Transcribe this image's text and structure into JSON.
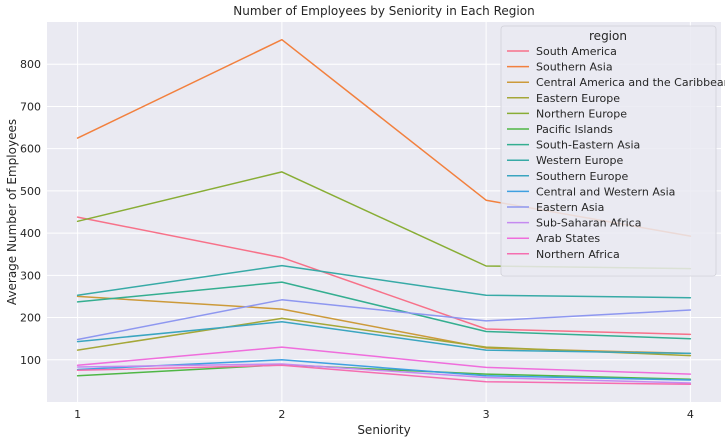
{
  "chart_data": {
    "type": "line",
    "title": "Number of Employees by Seniority in Each Region",
    "xlabel": "Seniority",
    "ylabel": "Average Number of Employees",
    "x": [
      1,
      2,
      3,
      4
    ],
    "xticks": [
      "1",
      "2",
      "3",
      "4"
    ],
    "yticks": [
      "100",
      "200",
      "300",
      "400",
      "500",
      "600",
      "700",
      "800"
    ],
    "xlim": [
      0.85,
      4.15
    ],
    "ylim": [
      0,
      900
    ],
    "grid": true,
    "legend": {
      "title": "region",
      "placement": "upper-right"
    },
    "series": [
      {
        "name": "South America",
        "color": "#f77189",
        "values": [
          438,
          342,
          173,
          160
        ]
      },
      {
        "name": "Southern Asia",
        "color": "#f2803e",
        "values": [
          625,
          858,
          478,
          393
        ]
      },
      {
        "name": "Central America and the Caribbean",
        "color": "#cc9a3a",
        "values": [
          250,
          220,
          128,
          115
        ]
      },
      {
        "name": "Eastern Europe",
        "color": "#a5a738",
        "values": [
          123,
          198,
          130,
          110
        ]
      },
      {
        "name": "Northern Europe",
        "color": "#88ad35",
        "values": [
          428,
          545,
          322,
          316
        ]
      },
      {
        "name": "Pacific Islands",
        "color": "#4fb645",
        "values": [
          62,
          88,
          66,
          54
        ]
      },
      {
        "name": "South-Eastern Asia",
        "color": "#34ae90",
        "values": [
          237,
          284,
          167,
          150
        ]
      },
      {
        "name": "Western Europe",
        "color": "#37aaa6",
        "values": [
          253,
          323,
          253,
          247
        ]
      },
      {
        "name": "Southern Europe",
        "color": "#3aa5c0",
        "values": [
          143,
          190,
          123,
          115
        ]
      },
      {
        "name": "Central and Western Asia",
        "color": "#3fa0e0",
        "values": [
          77,
          100,
          62,
          52
        ]
      },
      {
        "name": "Eastern Asia",
        "color": "#8e97f0",
        "values": [
          148,
          242,
          192,
          218
        ]
      },
      {
        "name": "Sub-Saharan Africa",
        "color": "#c58af0",
        "values": [
          83,
          90,
          58,
          45
        ]
      },
      {
        "name": "Arab States",
        "color": "#ef6ddc",
        "values": [
          87,
          130,
          82,
          66
        ]
      },
      {
        "name": "Northern Africa",
        "color": "#f56eb0",
        "values": [
          75,
          87,
          48,
          42
        ]
      }
    ]
  }
}
